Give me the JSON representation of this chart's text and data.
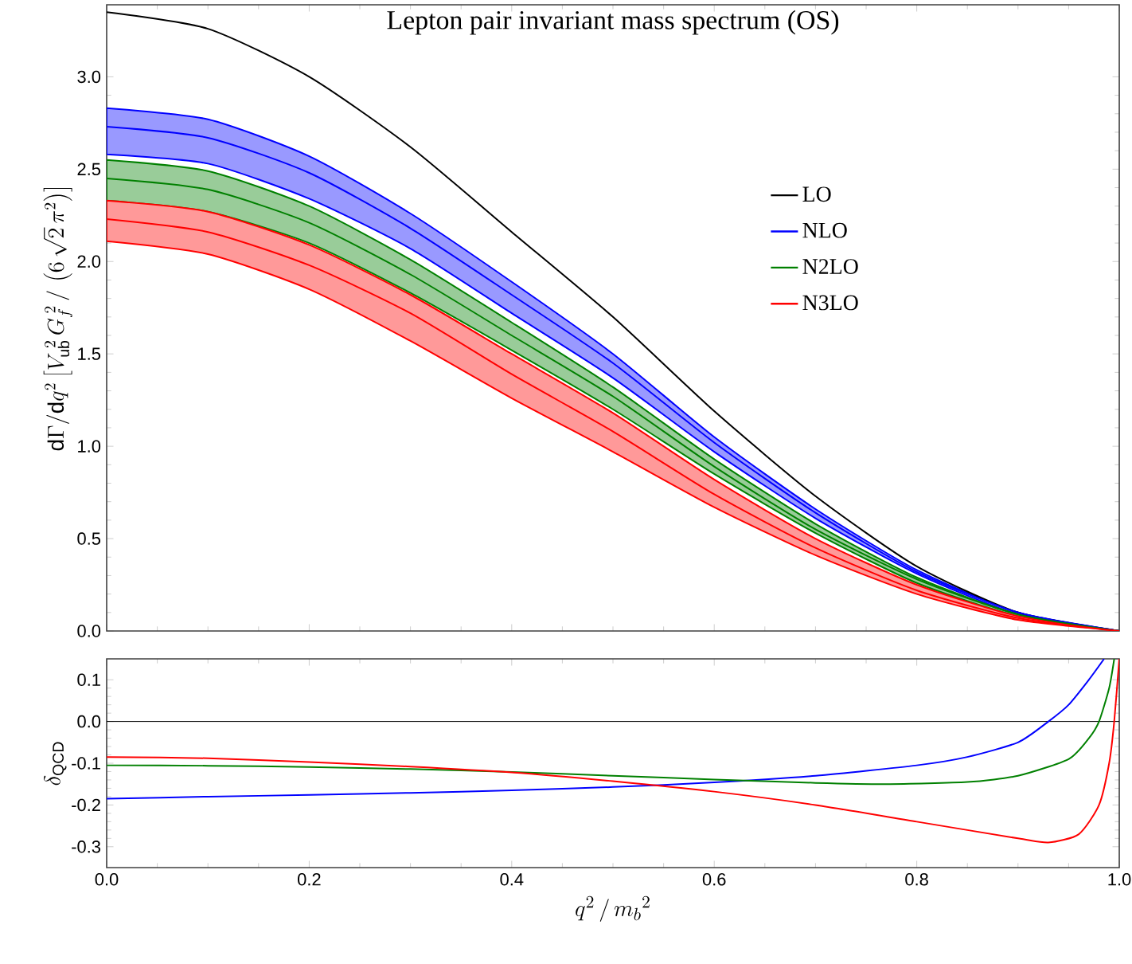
{
  "chart_data": [
    {
      "type": "line",
      "title": "Lepton pair invariant mass spectrum (OS)",
      "ylabel": "\\mathrm{d}\\Gamma/\\mathrm{d}q^2\\left[V_{\\mathrm{ub}}^{\\;2}\\,G_f^{\\;2}\\,/\\,\\left(6\\,\\sqrt{2}\\,\\pi^2\\right)\\right]",
      "x": [
        0,
        0.1,
        0.2,
        0.3,
        0.4,
        0.5,
        0.6,
        0.7,
        0.8,
        0.9,
        1.0
      ],
      "series": [
        {
          "name": "LO",
          "color": "#000000",
          "values": [
            3.35,
            3.26,
            3.0,
            2.62,
            2.16,
            1.7,
            1.19,
            0.73,
            0.35,
            0.1,
            0
          ]
        },
        {
          "name": "NLO",
          "color": "#0000ff",
          "values": [
            2.73,
            2.67,
            2.48,
            2.18,
            1.82,
            1.45,
            1.02,
            0.64,
            0.32,
            0.1,
            0
          ],
          "lower": [
            2.58,
            2.53,
            2.34,
            2.07,
            1.72,
            1.37,
            0.97,
            0.61,
            0.31,
            0.09,
            0
          ],
          "upper": [
            2.83,
            2.77,
            2.57,
            2.26,
            1.89,
            1.5,
            1.05,
            0.66,
            0.33,
            0.1,
            0
          ]
        },
        {
          "name": "N2LO",
          "color": "#008000",
          "values": [
            2.45,
            2.39,
            2.21,
            1.93,
            1.6,
            1.27,
            0.89,
            0.55,
            0.28,
            0.09,
            0
          ],
          "lower": [
            2.33,
            2.27,
            2.1,
            1.83,
            1.52,
            1.2,
            0.85,
            0.53,
            0.26,
            0.08,
            0
          ],
          "upper": [
            2.55,
            2.49,
            2.3,
            2.01,
            1.67,
            1.32,
            0.93,
            0.58,
            0.29,
            0.09,
            0
          ]
        },
        {
          "name": "N3LO",
          "color": "#ff0000",
          "values": [
            2.23,
            2.16,
            1.98,
            1.72,
            1.39,
            1.08,
            0.74,
            0.45,
            0.22,
            0.07,
            0
          ],
          "lower": [
            2.11,
            2.04,
            1.85,
            1.57,
            1.26,
            0.97,
            0.67,
            0.41,
            0.2,
            0.06,
            0
          ],
          "upper": [
            2.33,
            2.27,
            2.09,
            1.82,
            1.5,
            1.18,
            0.82,
            0.5,
            0.25,
            0.08,
            0
          ]
        }
      ],
      "xlim": [
        0,
        1
      ],
      "xticks": [
        0,
        0.2,
        0.4,
        0.6,
        0.8,
        1.0
      ],
      "ylim": [
        0,
        3.39
      ],
      "yticks": [
        {
          "value": 0,
          "label": "0.0"
        },
        0.5,
        {
          "value": 1,
          "label": "1.0"
        },
        1.5,
        {
          "value": 2,
          "label": "2.0"
        },
        2.5,
        {
          "value": 3,
          "label": "3.0"
        }
      ],
      "tick_labels": "y",
      "legend": "right"
    },
    {
      "type": "line",
      "xlabel": "q^2\\,/\\,{m_b}^2",
      "ylabel": "\\delta_{\\mathrm{QCD}}",
      "series": [
        {
          "color": "#0000ff",
          "x": [
            0,
            0.1,
            0.2,
            0.3,
            0.4,
            0.5,
            0.6,
            0.7,
            0.8,
            0.85,
            0.9,
            0.93,
            0.95,
            0.97,
            0.985
          ],
          "values": [
            -0.185,
            -0.18,
            -0.176,
            -0.171,
            -0.165,
            -0.157,
            -0.146,
            -0.13,
            -0.105,
            -0.085,
            -0.05,
            0.0,
            0.04,
            0.1,
            0.15
          ]
        },
        {
          "color": "#008000",
          "x": [
            0,
            0.1,
            0.2,
            0.3,
            0.4,
            0.5,
            0.6,
            0.7,
            0.77,
            0.85,
            0.9,
            0.95,
            0.97,
            0.98,
            0.99,
            0.995
          ],
          "values": [
            -0.105,
            -0.106,
            -0.109,
            -0.114,
            -0.121,
            -0.13,
            -0.139,
            -0.147,
            -0.15,
            -0.145,
            -0.13,
            -0.09,
            -0.04,
            0.0,
            0.08,
            0.15
          ]
        },
        {
          "color": "#ff0000",
          "x": [
            0,
            0.1,
            0.2,
            0.3,
            0.4,
            0.5,
            0.6,
            0.7,
            0.8,
            0.9,
            0.93,
            0.96,
            0.98,
            0.99,
            0.995,
            1.0
          ],
          "values": [
            -0.085,
            -0.088,
            -0.097,
            -0.108,
            -0.122,
            -0.143,
            -0.168,
            -0.2,
            -0.24,
            -0.28,
            -0.29,
            -0.27,
            -0.2,
            -0.1,
            0.0,
            0.15
          ]
        }
      ],
      "xlim": [
        0,
        1
      ],
      "xticks": [
        {
          "value": 0,
          "label": "0.0"
        },
        0.2,
        0.4,
        0.6,
        0.8,
        {
          "value": 1,
          "label": "1.0"
        }
      ],
      "ylim": [
        -0.35,
        0.15
      ],
      "yticks": [
        -0.3,
        -0.2,
        -0.1,
        {
          "value": 0,
          "label": "0.0"
        },
        0.1
      ],
      "ref_lines": [
        {
          "axis": "y",
          "value": 0,
          "color": "#000000"
        }
      ]
    }
  ]
}
